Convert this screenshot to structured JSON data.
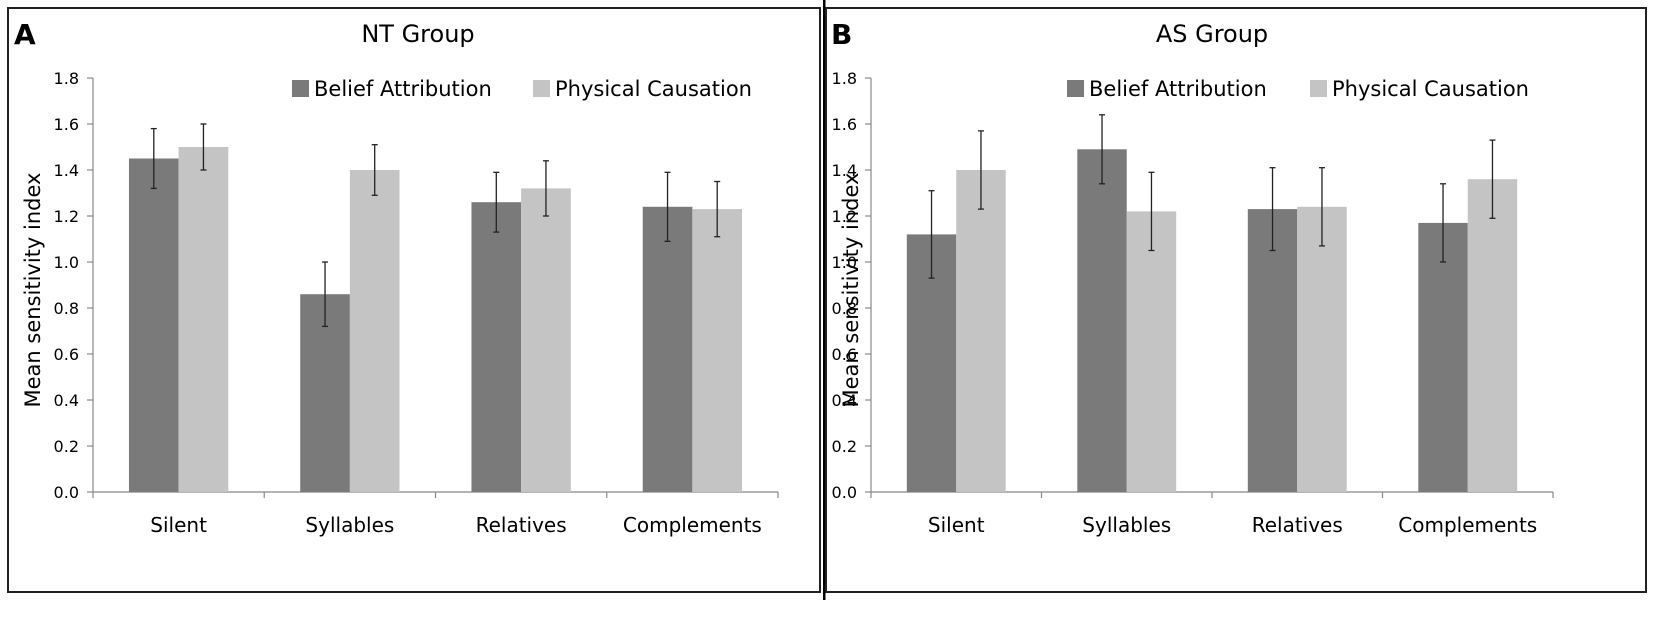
{
  "chart_data": [
    {
      "type": "bar",
      "panel_letter": "A",
      "title": "NT Group",
      "xlabel": "",
      "ylabel": "Mean sensitivity index",
      "ylim": [
        0,
        1.8
      ],
      "yticks": [
        "0.0",
        "0.2",
        "0.4",
        "0.6",
        "0.8",
        "1.0",
        "1.2",
        "1.4",
        "1.6",
        "1.8"
      ],
      "categories": [
        "Silent",
        "Syllables",
        "Relatives",
        "Complements"
      ],
      "legend_position": "top-right",
      "grid": false,
      "series": [
        {
          "name": "Belief Attribution",
          "color": "#7a7a7a",
          "values": [
            1.45,
            0.86,
            1.26,
            1.24
          ],
          "errors": [
            0.13,
            0.14,
            0.13,
            0.15
          ]
        },
        {
          "name": "Physical Causation",
          "color": "#c4c4c4",
          "values": [
            1.5,
            1.4,
            1.32,
            1.23
          ],
          "errors": [
            0.1,
            0.11,
            0.12,
            0.12
          ]
        }
      ]
    },
    {
      "type": "bar",
      "panel_letter": "B",
      "title": "AS Group",
      "xlabel": "",
      "ylabel": "Mean sensitivity index",
      "ylim": [
        0,
        1.8
      ],
      "yticks": [
        "0.0",
        "0.2",
        "0.4",
        "0.6",
        "0.8",
        "1.0",
        "1.2",
        "1.4",
        "1.6",
        "1.8"
      ],
      "categories": [
        "Silent",
        "Syllables",
        "Relatives",
        "Complements"
      ],
      "legend_position": "top-right",
      "grid": false,
      "series": [
        {
          "name": "Belief Attribution",
          "color": "#7a7a7a",
          "values": [
            1.12,
            1.49,
            1.23,
            1.17
          ],
          "errors": [
            0.19,
            0.15,
            0.18,
            0.17
          ]
        },
        {
          "name": "Physical Causation",
          "color": "#c4c4c4",
          "values": [
            1.4,
            1.22,
            1.24,
            1.36
          ],
          "errors": [
            0.17,
            0.17,
            0.17,
            0.17
          ]
        }
      ]
    }
  ]
}
